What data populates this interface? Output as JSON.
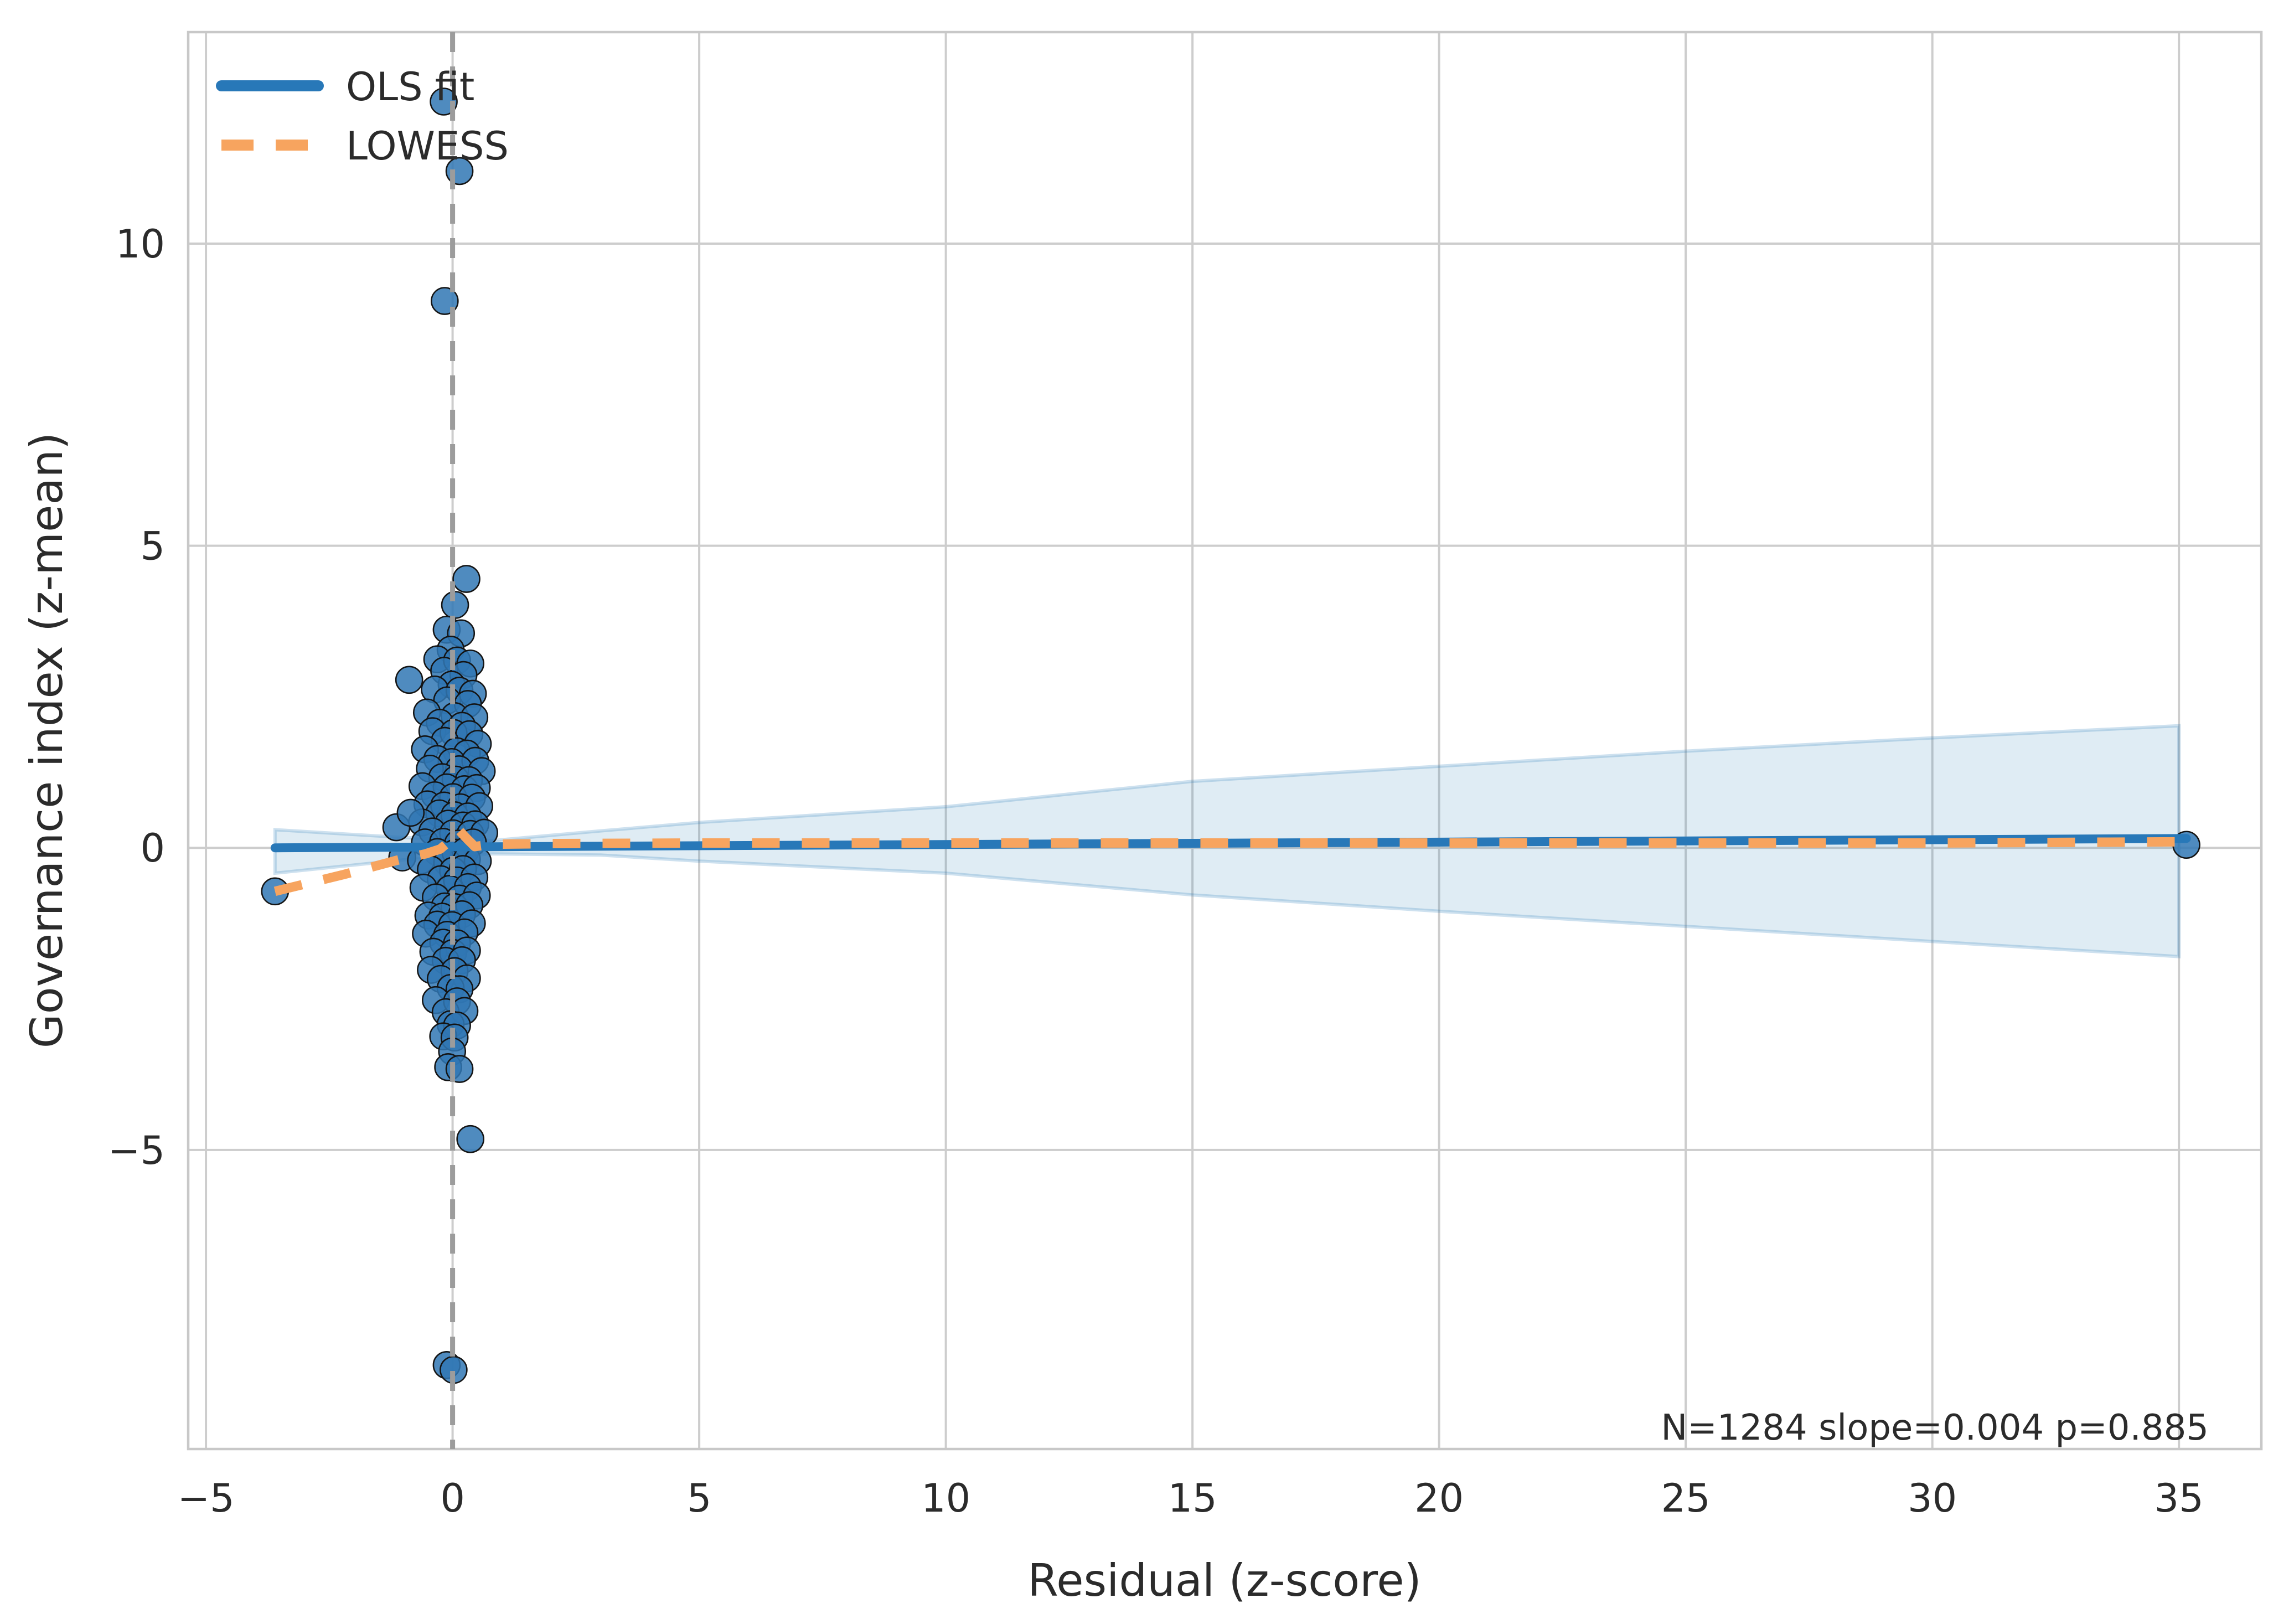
{
  "chart_data": {
    "type": "scatter",
    "title": "",
    "xlabel": "Residual (z-score)",
    "ylabel": "Governance index (z-mean)",
    "annotation": "N=1284  slope=0.004  p=0.885",
    "xlim": [
      -5.36,
      36.67
    ],
    "ylim": [
      -9.95,
      13.5
    ],
    "xticks": [
      -5,
      0,
      5,
      10,
      15,
      20,
      25,
      30,
      35
    ],
    "yticks": [
      -5,
      0,
      5,
      10
    ],
    "grid": true,
    "vline_x": 0,
    "legend": {
      "position": "upper left",
      "entries": [
        {
          "label": "OLS fit",
          "color": "#2878b8",
          "style": "solid"
        },
        {
          "label": "LOWESS",
          "color": "#f7a45f",
          "style": "dashed"
        }
      ]
    },
    "style": {
      "background": "#ffffff",
      "grid_color": "#cdcdcd",
      "spine_color": "#c8c8c8",
      "vline_color": "#9c9c9c",
      "text_color": "#2b2b2b",
      "point_fill": "#3077b4",
      "point_edge": "#141414",
      "point_radius": 24,
      "point_opacity": 0.85,
      "band_fill": "rgba(31,119,180,0.14)",
      "band_edge": "rgba(31,119,180,0.22)"
    },
    "scatter_points": [
      [
        0.28,
        4.45
      ],
      [
        0.05,
        4.02
      ],
      [
        -0.12,
        3.61
      ],
      [
        0.17,
        3.55
      ],
      [
        -0.04,
        3.28
      ],
      [
        -0.31,
        3.12
      ],
      [
        0.09,
        3.1
      ],
      [
        0.36,
        3.05
      ],
      [
        -0.17,
        2.93
      ],
      [
        0.22,
        2.86
      ],
      [
        -0.88,
        2.78
      ],
      [
        -0.02,
        2.7
      ],
      [
        -0.36,
        2.62
      ],
      [
        0.14,
        2.6
      ],
      [
        0.41,
        2.55
      ],
      [
        -0.11,
        2.44
      ],
      [
        0.31,
        2.38
      ],
      [
        -0.52,
        2.24
      ],
      [
        0.04,
        2.18
      ],
      [
        0.44,
        2.16
      ],
      [
        -0.26,
        2.07
      ],
      [
        0.19,
        2.02
      ],
      [
        -0.41,
        1.93
      ],
      [
        0.02,
        1.9
      ],
      [
        0.34,
        1.88
      ],
      [
        -0.16,
        1.77
      ],
      [
        0.51,
        1.72
      ],
      [
        -0.56,
        1.63
      ],
      [
        0.08,
        1.6
      ],
      [
        0.29,
        1.56
      ],
      [
        -0.31,
        1.47
      ],
      [
        -0.02,
        1.42
      ],
      [
        0.46,
        1.44
      ],
      [
        -0.46,
        1.31
      ],
      [
        0.13,
        1.3
      ],
      [
        0.59,
        1.27
      ],
      [
        -0.21,
        1.17
      ],
      [
        0.06,
        1.13
      ],
      [
        0.33,
        1.12
      ],
      [
        -0.61,
        1.02
      ],
      [
        -0.12,
        1.0
      ],
      [
        0.24,
        0.97
      ],
      [
        0.49,
        0.99
      ],
      [
        -0.36,
        0.87
      ],
      [
        0.01,
        0.84
      ],
      [
        0.39,
        0.83
      ],
      [
        -0.51,
        0.72
      ],
      [
        -0.17,
        0.7
      ],
      [
        0.16,
        0.67
      ],
      [
        0.54,
        0.69
      ],
      [
        -0.27,
        0.57
      ],
      [
        0.04,
        0.54
      ],
      [
        0.31,
        0.52
      ],
      [
        -0.62,
        0.42
      ],
      [
        -0.09,
        0.4
      ],
      [
        0.21,
        0.37
      ],
      [
        0.46,
        0.39
      ],
      [
        -0.41,
        0.27
      ],
      [
        0.01,
        0.24
      ],
      [
        0.36,
        0.23
      ],
      [
        0.64,
        0.25
      ],
      [
        -1.14,
        0.34
      ],
      [
        -0.85,
        0.58
      ],
      [
        -0.56,
        0.09
      ],
      [
        -0.19,
        0.1
      ],
      [
        0.11,
        0.07
      ],
      [
        0.41,
        0.09
      ],
      [
        -0.31,
        -0.07
      ],
      [
        0.06,
        -0.08
      ],
      [
        0.26,
        -0.05
      ],
      [
        -1.02,
        -0.16
      ],
      [
        -0.64,
        -0.21
      ],
      [
        -0.11,
        -0.24
      ],
      [
        0.29,
        -0.19
      ],
      [
        0.51,
        -0.22
      ],
      [
        -0.44,
        -0.36
      ],
      [
        0.01,
        -0.38
      ],
      [
        0.21,
        -0.35
      ],
      [
        -0.24,
        -0.52
      ],
      [
        0.09,
        -0.54
      ],
      [
        0.44,
        -0.49
      ],
      [
        -0.59,
        -0.66
      ],
      [
        -0.06,
        -0.68
      ],
      [
        0.31,
        -0.65
      ],
      [
        -0.34,
        -0.82
      ],
      [
        0.14,
        -0.84
      ],
      [
        0.49,
        -0.79
      ],
      [
        -0.16,
        -0.97
      ],
      [
        0.04,
        -0.98
      ],
      [
        0.34,
        -0.95
      ],
      [
        -0.49,
        -1.12
      ],
      [
        -0.21,
        -1.14
      ],
      [
        0.19,
        -1.1
      ],
      [
        -0.31,
        -1.27
      ],
      [
        -0.01,
        -1.28
      ],
      [
        0.39,
        -1.25
      ],
      [
        -0.54,
        -1.42
      ],
      [
        -0.11,
        -1.44
      ],
      [
        0.24,
        -1.4
      ],
      [
        -0.19,
        -1.57
      ],
      [
        0.09,
        -1.58
      ],
      [
        -0.39,
        -1.72
      ],
      [
        0.01,
        -1.74
      ],
      [
        0.29,
        -1.7
      ],
      [
        -0.14,
        -1.87
      ],
      [
        0.19,
        -1.86
      ],
      [
        -0.44,
        -2.02
      ],
      [
        0.04,
        -2.04
      ],
      [
        -0.24,
        -2.17
      ],
      [
        0.29,
        -2.16
      ],
      [
        -0.04,
        -2.32
      ],
      [
        0.14,
        -2.34
      ],
      [
        -0.34,
        -2.52
      ],
      [
        0.09,
        -2.54
      ],
      [
        -0.14,
        -2.72
      ],
      [
        0.24,
        -2.7
      ],
      [
        -0.04,
        -2.92
      ],
      [
        0.09,
        -2.94
      ],
      [
        -0.19,
        -3.12
      ],
      [
        0.04,
        -3.14
      ],
      [
        -0.01,
        -3.37
      ],
      [
        -0.09,
        -3.63
      ],
      [
        0.14,
        -3.66
      ],
      [
        0.36,
        -4.82
      ],
      [
        -0.12,
        -8.56
      ],
      [
        0.02,
        -8.64
      ],
      [
        -0.18,
        12.35
      ],
      [
        0.14,
        11.2
      ],
      [
        -0.16,
        9.05
      ],
      [
        -3.6,
        -0.72
      ],
      [
        35.15,
        0.05
      ]
    ],
    "series": [
      {
        "name": "OLS fit",
        "type": "line",
        "color": "#2878b8",
        "width": 16,
        "dashed": false,
        "points": [
          [
            -3.6,
            0.0
          ],
          [
            35.15,
            0.155
          ]
        ]
      },
      {
        "name": "LOWESS",
        "type": "line",
        "color": "#f7a45f",
        "width": 17,
        "dashed": true,
        "dash": [
          50,
          40
        ],
        "points": [
          [
            -3.6,
            -0.72
          ],
          [
            -2.2,
            -0.44
          ],
          [
            -1.1,
            -0.2
          ],
          [
            -0.55,
            -0.1
          ],
          [
            -0.25,
            -0.02
          ],
          [
            -0.05,
            0.12
          ],
          [
            0.12,
            0.3
          ],
          [
            0.28,
            0.16
          ],
          [
            0.45,
            0.02
          ],
          [
            0.8,
            0.06
          ],
          [
            2,
            0.07
          ],
          [
            5,
            0.08
          ],
          [
            10,
            0.08
          ],
          [
            15,
            0.08
          ],
          [
            20,
            0.08
          ],
          [
            25,
            0.08
          ],
          [
            30,
            0.08
          ],
          [
            35.15,
            0.1
          ]
        ]
      },
      {
        "name": "95% CI band",
        "type": "band",
        "x": [
          -3.6,
          -1.0,
          0.8,
          3,
          5,
          10,
          15,
          20,
          25,
          30,
          35.0
        ],
        "top": [
          0.3,
          0.17,
          0.12,
          0.28,
          0.42,
          0.68,
          1.1,
          1.35,
          1.6,
          1.82,
          2.02
        ],
        "bottom": [
          -0.42,
          -0.2,
          -0.1,
          -0.12,
          -0.22,
          -0.42,
          -0.78,
          -1.05,
          -1.3,
          -1.55,
          -1.8
        ]
      }
    ]
  }
}
